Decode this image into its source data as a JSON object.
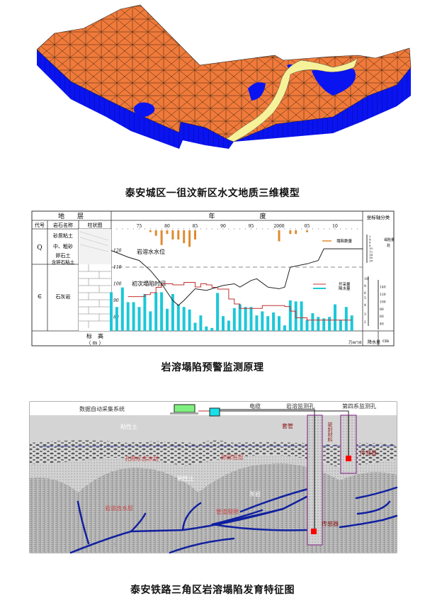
{
  "figure1": {
    "caption": "泰安城区一徂汶新区水文地质三维模型",
    "colors": {
      "surface": "#f07a3a",
      "base": "#0a14f0",
      "river": "#f6f29a",
      "mesh": "#2a1a10"
    }
  },
  "figure2": {
    "caption": "岩溶塌陷预警监测原理",
    "header": {
      "stratum": "地　　层",
      "year": "年　　　　　　　度",
      "code": "代号",
      "rock_name": "岩石名称",
      "column": "柱状图",
      "axis_class": "坐标轴分类"
    },
    "strata": [
      {
        "code": "Q",
        "names": [
          "砂质粘土",
          "中、粗砂",
          "卵石土",
          "含碎石粘土"
        ]
      },
      {
        "code": "∈",
        "names": [
          "石灰岩"
        ]
      }
    ],
    "footer": {
      "elevation": "标　高",
      "unit": "（ m ）",
      "pump_unit": "万m³/d",
      "pump_label": "开采量",
      "rain_label": "降水量",
      "rain_unit": "cm"
    },
    "annotations": {
      "water_level": "岩溶水水位",
      "first_collapse": "初次塌陷时间"
    },
    "right_axis": {
      "collapse_label": "塌陷量",
      "collapse_unit": "处",
      "collapse_ticks": [
        "2",
        "4",
        "6",
        "8",
        "10",
        "12",
        "14",
        "16",
        "18"
      ],
      "pump_ticks": [
        "10",
        "8",
        "6",
        "5",
        "4",
        "3",
        "2"
      ],
      "rain_ticks": [
        "140",
        "120",
        "100",
        "80",
        "60",
        "40"
      ]
    },
    "chart_data": {
      "type": "combo",
      "x_tick_labels": [
        "75",
        "80",
        "85",
        "90",
        "95",
        "2000",
        "05",
        "10"
      ],
      "x_ticks": [
        1975,
        1980,
        1985,
        1990,
        1995,
        2000,
        2005,
        2010
      ],
      "xlim": [
        1970,
        2015
      ],
      "elevation_ticks": [
        120,
        110,
        100,
        90,
        80
      ],
      "ylim_elevation": [
        76,
        124
      ],
      "legend": [
        {
          "name": "塌陷数量",
          "color": "#e08a30"
        },
        {
          "name": "开采量",
          "color": "#c03030"
        },
        {
          "name": "降水量",
          "color": "#1cc8d8"
        }
      ],
      "series": [
        {
          "name": "塌陷数量",
          "type": "bar-down",
          "x": [
            1977,
            1978,
            1979,
            1980,
            1981,
            1982,
            1983,
            1984,
            1985,
            2000,
            2002,
            2003,
            2005
          ],
          "values": [
            1,
            3,
            8,
            2,
            5,
            5,
            7,
            9,
            5,
            6,
            2,
            2,
            1
          ]
        },
        {
          "name": "岩溶水水位",
          "type": "line",
          "x": [
            1970,
            1973,
            1975,
            1977,
            1979,
            1981,
            1982,
            1983,
            1985,
            1987,
            1990,
            1992,
            1993,
            1995,
            1996,
            1998,
            2000,
            2001,
            2002,
            2005,
            2007,
            2008,
            2015
          ],
          "values": [
            120,
            116,
            114,
            108,
            100,
            90,
            87,
            90,
            97,
            96,
            99,
            100,
            98,
            102,
            103,
            98,
            97,
            98,
            110,
            112,
            114,
            121,
            121
          ]
        },
        {
          "name": "开采量",
          "type": "step",
          "x": [
            1973,
            1976,
            1977,
            1978,
            1979,
            1981,
            1983,
            1985,
            1986,
            1987,
            1988,
            1989,
            1991,
            1992,
            1993,
            1997,
            2001,
            2002,
            2003,
            2005,
            2013
          ],
          "values": [
            5.2,
            5.6,
            6,
            7.5,
            8.5,
            8.2,
            8.9,
            7.6,
            8.5,
            8.2,
            7.5,
            7,
            4.8,
            4.1,
            3.6,
            3.9,
            3.8,
            3.3,
            2.5,
            2.2,
            2.2
          ]
        },
        {
          "name": "降水量",
          "type": "bar",
          "x_start": 1970,
          "values": [
            125,
            85,
            138,
            98,
            98,
            85,
            120,
            73,
            125,
            125,
            80,
            120,
            92,
            85,
            78,
            42,
            62,
            32,
            28,
            123,
            60,
            48,
            82,
            92,
            85,
            85,
            62,
            73,
            60,
            70,
            60,
            35,
            103,
            100,
            100,
            50,
            68,
            58,
            54,
            58,
            92,
            50,
            85,
            62
          ]
        }
      ]
    }
  },
  "figure3": {
    "caption": "泰安铁路三角区岩溶塌陷发育特征图",
    "labels": {
      "system": "数据自动采集系统",
      "cable": "电缆",
      "karst_hole": "岩溶监测孔",
      "quaternary_hole": "第四系监测孔",
      "casing": "套管",
      "seal": "密封材料",
      "sensor_upper": "传感器",
      "sensor_lower": "传感器",
      "clay_top": "粘性土",
      "pore_aquifer": "孔隙水含水层",
      "gravel": "卵砾石层",
      "clay_mid": "粘性土",
      "limestone": "灰岩",
      "karst_aquifer": "岩溶含水层",
      "fissure": "管道裂隙"
    }
  }
}
